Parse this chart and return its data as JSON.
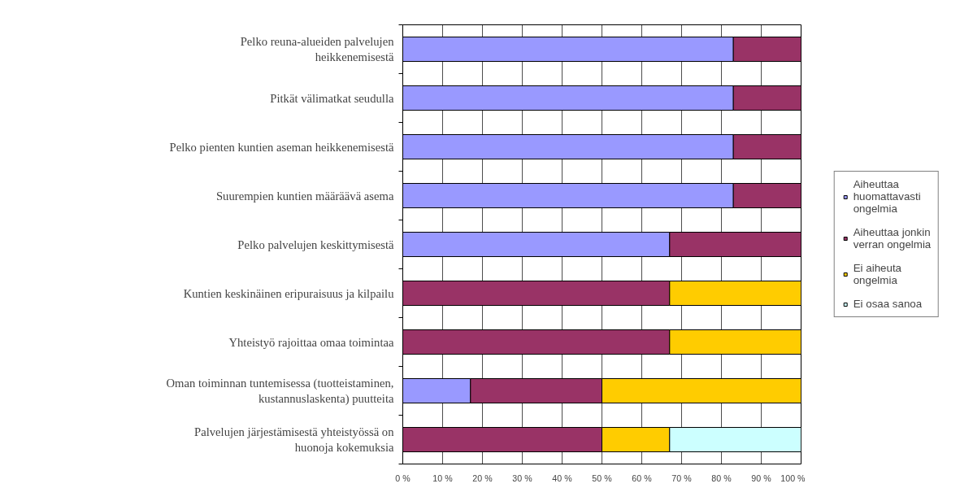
{
  "chart_data": {
    "type": "bar",
    "orientation": "horizontal",
    "stacked": true,
    "categories": [
      "Pelko reuna-alueiden palvelujen heikkenemisestä",
      "Pitkät välimatkat seudulla",
      "Pelko pienten kuntien aseman heikkenemisestä",
      "Suurempien kuntien määräävä asema",
      "Pelko palvelujen keskittymisestä",
      "Kuntien keskinäinen eripuraisuus ja kilpailu",
      "Yhteistyö rajoittaa omaa toimintaa",
      "Oman toiminnan tuntemisessa (tuotteistaminen, kustannuslaskenta) puutteita",
      "Palvelujen järjestämisestä yhteistyössä on huonoja kokemuksia"
    ],
    "series": [
      {
        "name": "Aiheuttaa huomattavasti ongelmia",
        "color": "#9999ff",
        "values": [
          83,
          83,
          83,
          83,
          67,
          0,
          0,
          17,
          0
        ]
      },
      {
        "name": "Aiheuttaa jonkin verran ongelmia",
        "color": "#993366",
        "values": [
          17,
          17,
          17,
          17,
          33,
          67,
          67,
          33,
          50
        ]
      },
      {
        "name": "Ei aiheuta ongelmia",
        "color": "#ffcc00",
        "values": [
          0,
          0,
          0,
          0,
          0,
          33,
          33,
          50,
          17
        ]
      },
      {
        "name": "Ei osaa sanoa",
        "color": "#ccffff",
        "values": [
          0,
          0,
          0,
          0,
          0,
          0,
          0,
          0,
          33
        ]
      }
    ],
    "xlim": [
      0,
      100
    ],
    "xticks": [
      {
        "value": 0,
        "label": "0 %"
      },
      {
        "value": 10,
        "label": "10 %"
      },
      {
        "value": 20,
        "label": "20 %"
      },
      {
        "value": 30,
        "label": "30 %"
      },
      {
        "value": 40,
        "label": "40 %"
      },
      {
        "value": 50,
        "label": "50 %"
      },
      {
        "value": 60,
        "label": "60 %"
      },
      {
        "value": 70,
        "label": "70 %"
      },
      {
        "value": 80,
        "label": "80 %"
      },
      {
        "value": 90,
        "label": "90 %"
      },
      {
        "value": 100,
        "label": "100 %"
      }
    ],
    "grid": "x",
    "legend": "right"
  }
}
